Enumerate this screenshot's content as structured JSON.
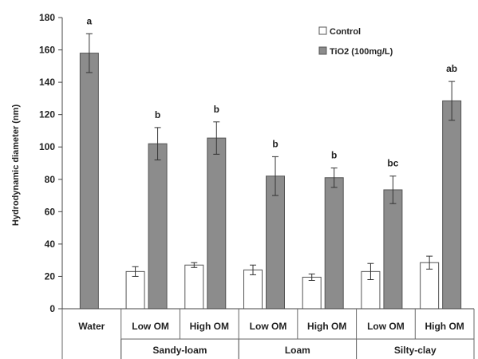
{
  "chart_data": {
    "type": "bar",
    "ylabel": "Hydrodynamic diameter (nm)",
    "ylim": [
      0,
      180
    ],
    "yticks": [
      0,
      20,
      40,
      60,
      80,
      100,
      120,
      140,
      160,
      180
    ],
    "categories": [
      "Water",
      "Low OM",
      "High OM",
      "Low OM",
      "High OM",
      "Low OM",
      "High OM"
    ],
    "groups": [
      {
        "label": "",
        "span": [
          0,
          0
        ]
      },
      {
        "label": "Sandy-loam",
        "span": [
          1,
          2
        ]
      },
      {
        "label": "Loam",
        "span": [
          3,
          4
        ]
      },
      {
        "label": "Silty-clay",
        "span": [
          5,
          6
        ]
      }
    ],
    "series": [
      {
        "name": "Control",
        "color": "#ffffff",
        "values": [
          null,
          23,
          27,
          24,
          19.5,
          23,
          28.5
        ],
        "errors": [
          null,
          3,
          1.5,
          3,
          2,
          5,
          4
        ]
      },
      {
        "name": "TiO2 (100mg/L)",
        "color": "#8c8c8c",
        "values": [
          158,
          102,
          105.5,
          82,
          81,
          73.5,
          128.5
        ],
        "errors": [
          12,
          10,
          10,
          12,
          6,
          8.5,
          12
        ]
      }
    ],
    "significance": [
      "a",
      "b",
      "b",
      "b",
      "b",
      "bc",
      "ab"
    ],
    "legend": "top-right",
    "grid": false
  }
}
